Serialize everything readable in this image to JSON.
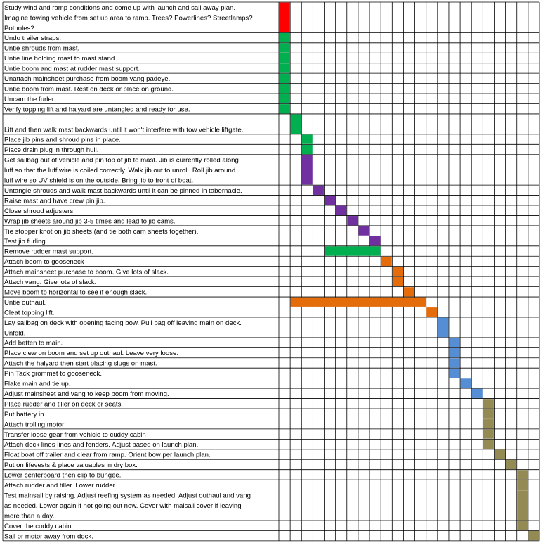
{
  "chart_data": {
    "type": "bar",
    "title": "",
    "xlabel": "",
    "ylabel": "",
    "total_slots": 23,
    "tasks": [
      {
        "lines": [
          "Study wind and ramp conditions and come up with launch and sail away plan.",
          "Imagine towing vehicle from set up area to ramp.  Trees? Powerlines? Streetlamps?",
          "Potholes?"
        ],
        "start": 0,
        "duration": 1,
        "color": "#ff0000"
      },
      {
        "lines": [
          "Undo trailer straps."
        ],
        "start": 0,
        "duration": 1,
        "color": "#00b050"
      },
      {
        "lines": [
          "Untie shrouds from mast."
        ],
        "start": 0,
        "duration": 1,
        "color": "#00b050"
      },
      {
        "lines": [
          "Untie line holding mast to mast stand."
        ],
        "start": 0,
        "duration": 1,
        "color": "#00b050"
      },
      {
        "lines": [
          "Untie boom and mast at rudder mast support."
        ],
        "start": 0,
        "duration": 1,
        "color": "#00b050"
      },
      {
        "lines": [
          "Unattach mainsheet purchase from boom vang padeye."
        ],
        "start": 0,
        "duration": 1,
        "color": "#00b050"
      },
      {
        "lines": [
          "Untie boom from mast.  Rest on deck or place on ground."
        ],
        "start": 0,
        "duration": 1,
        "color": "#00b050"
      },
      {
        "lines": [
          "Uncam the furler."
        ],
        "start": 0,
        "duration": 1,
        "color": "#00b050"
      },
      {
        "lines": [
          "Verify topping lift and halyard are untangled and ready for use."
        ],
        "start": 0,
        "duration": 1,
        "color": "#00b050"
      },
      {
        "lines": [
          "",
          "Lift and then walk mast backwards until it won't interfere with tow vehicle liftgate."
        ],
        "start": 1,
        "duration": 1,
        "color": "#00b050"
      },
      {
        "lines": [
          "Place jib pins and shroud pins in place."
        ],
        "start": 2,
        "duration": 1,
        "color": "#00b050"
      },
      {
        "lines": [
          "Place drain plug in through hull."
        ],
        "start": 2,
        "duration": 1,
        "color": "#00b050"
      },
      {
        "lines": [
          "Get sailbag out of vehicle and pin top of jib to mast.  Jib is currently rolled along",
          "luff so that the luff wire is coiled correctly.  Walk jib out to unroll.  Roll jib around",
          "luff wire so UV shield is on the outside.  Bring jib to front of boat."
        ],
        "start": 2,
        "duration": 1,
        "color": "#7030a0"
      },
      {
        "lines": [
          "Untangle shrouds and walk mast backwards until it can be pinned in tabernacle."
        ],
        "start": 3,
        "duration": 1,
        "color": "#7030a0"
      },
      {
        "lines": [
          "Raise mast and have crew pin jib."
        ],
        "start": 4,
        "duration": 1,
        "color": "#7030a0"
      },
      {
        "lines": [
          "Close shroud adjusters."
        ],
        "start": 5,
        "duration": 1,
        "color": "#7030a0"
      },
      {
        "lines": [
          "Wrap jib sheets around jib 3-5 times and lead to jib cams."
        ],
        "start": 6,
        "duration": 1,
        "color": "#7030a0"
      },
      {
        "lines": [
          "Tie stopper knot on jib sheets (and tie both cam sheets together)."
        ],
        "start": 7,
        "duration": 1,
        "color": "#7030a0"
      },
      {
        "lines": [
          "Test jib furling."
        ],
        "start": 8,
        "duration": 1,
        "color": "#7030a0"
      },
      {
        "lines": [
          "Remove rudder mast support."
        ],
        "start": 4,
        "duration": 5,
        "color": "#00b050"
      },
      {
        "lines": [
          "Attach boom to gooseneck"
        ],
        "start": 9,
        "duration": 1,
        "color": "#e46c0a"
      },
      {
        "lines": [
          "Attach mainsheet purchase to boom. Give lots of slack."
        ],
        "start": 10,
        "duration": 1,
        "color": "#e46c0a"
      },
      {
        "lines": [
          "Attach vang.  Give lots of slack."
        ],
        "start": 10,
        "duration": 1,
        "color": "#e46c0a"
      },
      {
        "lines": [
          "Move boom to horizontal to see if enough slack."
        ],
        "start": 11,
        "duration": 1,
        "color": "#e46c0a"
      },
      {
        "lines": [
          "Untie outhaul."
        ],
        "start": 1,
        "duration": 12,
        "color": "#e46c0a"
      },
      {
        "lines": [
          "Cleat topping lift."
        ],
        "start": 13,
        "duration": 1,
        "color": "#e46c0a"
      },
      {
        "lines": [
          "Lay sailbag on deck with opening facing bow.  Pull bag off leaving main on deck.",
          "Unfold."
        ],
        "start": 14,
        "duration": 1,
        "color": "#558ed5"
      },
      {
        "lines": [
          "Add batten to main."
        ],
        "start": 15,
        "duration": 1,
        "color": "#558ed5"
      },
      {
        "lines": [
          "Place clew on boom and set up outhaul.  Leave very loose."
        ],
        "start": 15,
        "duration": 1,
        "color": "#558ed5"
      },
      {
        "lines": [
          "Attach the halyard then start placing slugs on mast."
        ],
        "start": 15,
        "duration": 1,
        "color": "#558ed5"
      },
      {
        "lines": [
          "Pin Tack grommet to gooseneck."
        ],
        "start": 15,
        "duration": 1,
        "color": "#558ed5"
      },
      {
        "lines": [
          "Flake main and tie up."
        ],
        "start": 16,
        "duration": 1,
        "color": "#558ed5"
      },
      {
        "lines": [
          "Adjust mainsheet and vang to keep boom from moving."
        ],
        "start": 17,
        "duration": 1,
        "color": "#558ed5"
      },
      {
        "lines": [
          "Place rudder and tiller on deck or seats"
        ],
        "start": 18,
        "duration": 1,
        "color": "#948a54"
      },
      {
        "lines": [
          "Put battery in"
        ],
        "start": 18,
        "duration": 1,
        "color": "#948a54"
      },
      {
        "lines": [
          "Attach trolling motor"
        ],
        "start": 18,
        "duration": 1,
        "color": "#948a54"
      },
      {
        "lines": [
          "Transfer loose gear from vehicle to cuddy cabin"
        ],
        "start": 18,
        "duration": 1,
        "color": "#948a54"
      },
      {
        "lines": [
          "Attach dock lines lines and fenders.  Adjust based on launch plan."
        ],
        "start": 18,
        "duration": 1,
        "color": "#948a54"
      },
      {
        "lines": [
          "Float boat off trailer and clear from ramp.  Orient bow per launch plan."
        ],
        "start": 19,
        "duration": 1,
        "color": "#948a54"
      },
      {
        "lines": [
          "Put on lifevests & place valuables in dry box."
        ],
        "start": 20,
        "duration": 1,
        "color": "#948a54"
      },
      {
        "lines": [
          "Lower centerboard then clip to bungee."
        ],
        "start": 21,
        "duration": 1,
        "color": "#948a54"
      },
      {
        "lines": [
          "Attach rudder and tiller.  Lower rudder."
        ],
        "start": 21,
        "duration": 1,
        "color": "#948a54"
      },
      {
        "lines": [
          "Test mainsail by raising.  Adjust reefing system as needed.  Adjust outhaul and vang",
          "as needed.  Lower again if not going out now.  Cover with maisail cover if leaving",
          "more than a day."
        ],
        "start": 21,
        "duration": 1,
        "color": "#948a54"
      },
      {
        "lines": [
          "Cover the cuddy cabin."
        ],
        "start": 21,
        "duration": 1,
        "color": "#948a54"
      },
      {
        "lines": [
          "Sail or motor away from dock."
        ],
        "start": 22,
        "duration": 1,
        "color": "#948a54"
      }
    ]
  }
}
